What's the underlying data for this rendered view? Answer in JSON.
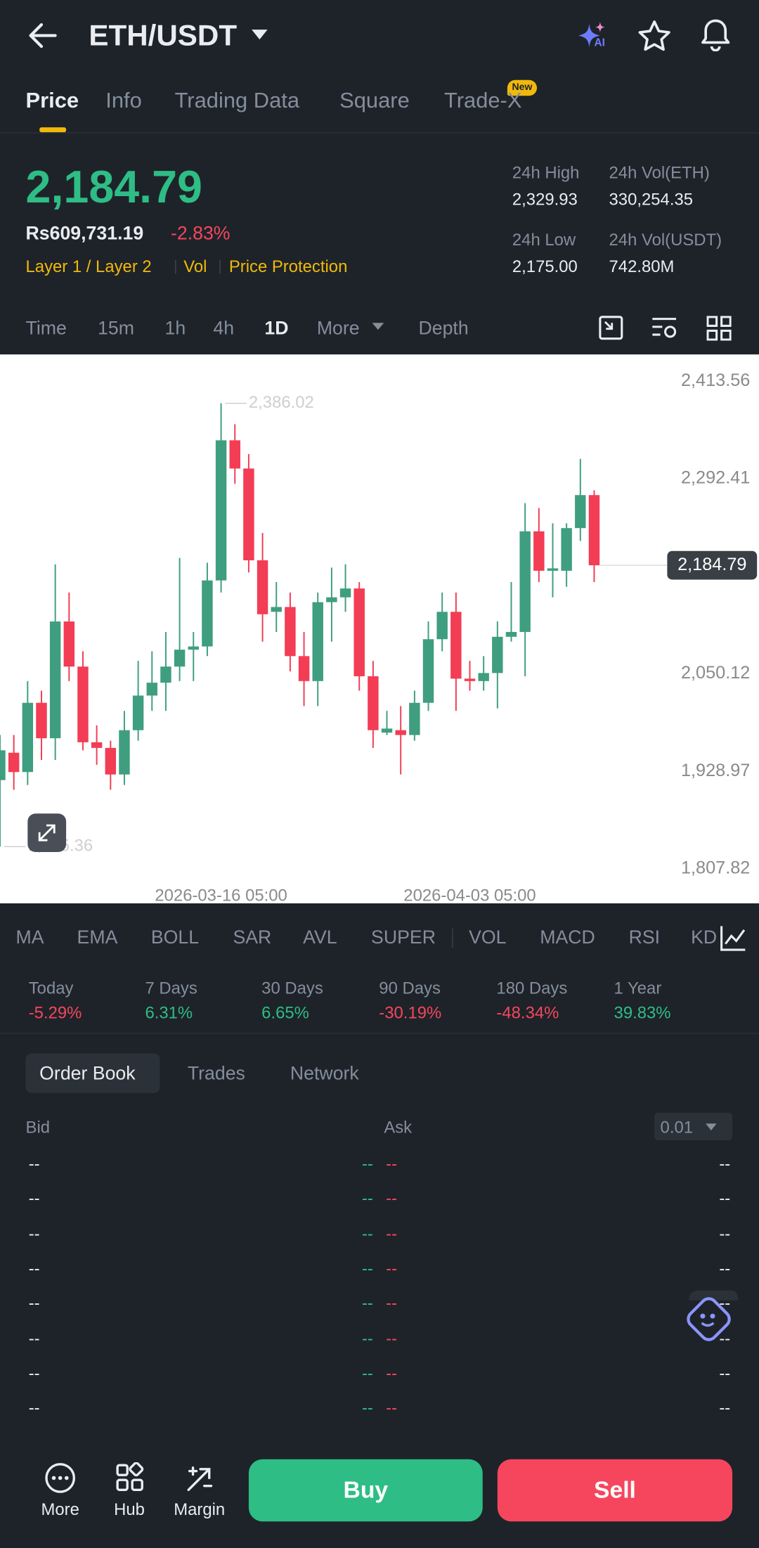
{
  "header": {
    "pair": "ETH/USDT",
    "ai_badge": "AI"
  },
  "tabs": {
    "items": [
      "Price",
      "Info",
      "Trading Data",
      "Square",
      "Trade-X"
    ],
    "new_badge": "New"
  },
  "price": {
    "last": "2,184.79",
    "local": "Rs609,731.19",
    "change": "-2.83%",
    "tags": [
      "Layer 1 / Layer 2",
      "Vol",
      "Price Protection"
    ]
  },
  "stats": [
    {
      "label": "24h High",
      "value": "2,329.93"
    },
    {
      "label": "24h Vol(ETH)",
      "value": "330,254.35"
    },
    {
      "label": "24h Low",
      "value": "2,175.00"
    },
    {
      "label": "24h Vol(USDT)",
      "value": "742.80M"
    }
  ],
  "intervals": [
    "Time",
    "15m",
    "1h",
    "4h",
    "1D",
    "More",
    "Depth"
  ],
  "chart_data": {
    "type": "candlestick",
    "categories": [
      null,
      null,
      null,
      null,
      null,
      null,
      null,
      null,
      null,
      null,
      null,
      null,
      null,
      null,
      null,
      null,
      "2026-03-16 05:00",
      null,
      null,
      null,
      null,
      null,
      null,
      null,
      null,
      null,
      null,
      null,
      null,
      null,
      null,
      null,
      null,
      null,
      "2026-04-03 05:00",
      null,
      null,
      null,
      null,
      null,
      null,
      null,
      null,
      null
    ],
    "open": [
      1918,
      1952,
      1928,
      2014,
      1970,
      2115,
      2059,
      1965,
      1958,
      1925,
      1980,
      2023,
      2039,
      2059,
      2080,
      2084,
      2166,
      2340,
      2305,
      2191,
      2127,
      2133,
      2072,
      2041,
      2139,
      2145,
      2156,
      2047,
      1977,
      1980,
      1974,
      2014,
      2093,
      2127,
      2044,
      2041,
      2051,
      2096,
      2102,
      2227,
      2178,
      2178,
      2231,
      2272
    ],
    "high": [
      1974,
      1974,
      2041,
      2029,
      2186,
      2151,
      2078,
      1986,
      1967,
      2004,
      2066,
      2078,
      2102,
      2194,
      2102,
      2188,
      2386.02,
      2360,
      2323,
      2225,
      2164,
      2151,
      2102,
      2151,
      2182,
      2186,
      2164,
      2066,
      2004,
      2010,
      2029,
      2115,
      2151,
      2151,
      2066,
      2072,
      2115,
      2164,
      2262,
      2256,
      2237,
      2237,
      2317,
      2278
    ],
    "low": [
      1835.36,
      1906,
      1912,
      1943,
      1943,
      2041,
      1955,
      1937,
      1906,
      1912,
      1967,
      2004,
      2004,
      2041,
      2041,
      2072,
      2151,
      2286,
      2176,
      2090,
      2102,
      2053,
      2010,
      2010,
      2090,
      2127,
      2029,
      1958,
      1974,
      1925,
      1967,
      2004,
      2078,
      2004,
      2029,
      2029,
      2007,
      2090,
      2047,
      2164,
      2145,
      2158,
      2215,
      2164
    ],
    "close": [
      1955,
      1928,
      2014,
      1970,
      2115,
      2059,
      1965,
      1958,
      1925,
      1980,
      2023,
      2039,
      2059,
      2080,
      2084,
      2166,
      2340,
      2305,
      2191,
      2124,
      2133,
      2072,
      2041,
      2139,
      2145,
      2156,
      2047,
      1980,
      1982,
      1974,
      2014,
      2093,
      2127,
      2044,
      2041,
      2051,
      2096,
      2102,
      2227,
      2178,
      2181,
      2231,
      2272,
      2184.79
    ],
    "up_color": "#3f9e80",
    "down_color": "#f23d55",
    "ylim": [
      1807.82,
      2413.56
    ],
    "yticks": [
      {
        "value": 1807.82,
        "label": "1,807.82"
      },
      {
        "value": 1928.97,
        "label": "1,928.97"
      },
      {
        "value": 2050.12,
        "label": "2,050.12"
      },
      {
        "value": 2292.41,
        "label": "2,292.41"
      },
      {
        "value": 2413.56,
        "label": "2,413.56"
      }
    ],
    "last_price": {
      "value": 2184.79,
      "label": "2,184.79"
    },
    "high_annotation": {
      "value": 2386.02,
      "label": "2,386.02"
    },
    "low_annotation": {
      "value": 1835.36,
      "label": "1,835.36"
    }
  },
  "indicators": [
    "MA",
    "EMA",
    "BOLL",
    "SAR",
    "AVL",
    "SUPER",
    "VOL",
    "MACD",
    "RSI",
    "KDJ"
  ],
  "performance": [
    {
      "label": "Today",
      "value": "-5.29%"
    },
    {
      "label": "7 Days",
      "value": "6.31%"
    },
    {
      "label": "30 Days",
      "value": "6.65%"
    },
    {
      "label": "90 Days",
      "value": "-30.19%"
    },
    {
      "label": "180 Days",
      "value": "-48.34%"
    },
    {
      "label": "1 Year",
      "value": "39.83%"
    }
  ],
  "order_book": {
    "tabs": [
      "Order Book",
      "Trades",
      "Network"
    ],
    "bid": "Bid",
    "ask": "Ask",
    "precision": "0.01",
    "rows": [
      [
        "--",
        "--",
        "--",
        "--"
      ],
      [
        "--",
        "--",
        "--",
        "--"
      ],
      [
        "--",
        "--",
        "--",
        "--"
      ],
      [
        "--",
        "--",
        "--",
        "--"
      ],
      [
        "--",
        "--",
        "--",
        "--"
      ],
      [
        "--",
        "--",
        "--",
        "--"
      ],
      [
        "--",
        "--",
        "--",
        "--"
      ],
      [
        "--",
        "--",
        "--",
        "--"
      ]
    ]
  },
  "bottom_bar": {
    "items": [
      "More",
      "Hub",
      "Margin"
    ],
    "buy": "Buy",
    "sell": "Sell"
  }
}
